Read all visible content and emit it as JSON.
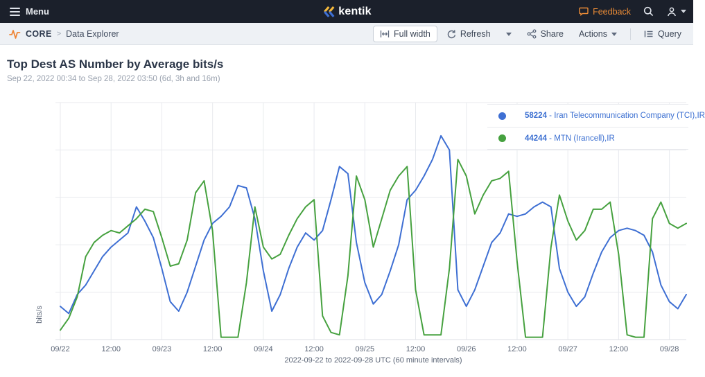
{
  "header": {
    "menu_label": "Menu",
    "brand": "kentik",
    "feedback_label": "Feedback"
  },
  "toolbar": {
    "breadcrumb": {
      "module": "CORE",
      "separator": ">",
      "page": "Data Explorer"
    },
    "buttons": {
      "full_width": "Full width",
      "refresh": "Refresh",
      "share": "Share",
      "actions": "Actions",
      "query": "Query"
    }
  },
  "page": {
    "title": "Top Dest AS Number by Average bits/s",
    "date_range": "Sep 22, 2022 00:34 to Sep 28, 2022 03:50 (6d, 3h and 16m)"
  },
  "chart_data": {
    "type": "line",
    "title": "Top Dest AS Number by Average bits/s",
    "ylabel": "bits/s",
    "xlabel": "2022-09-22 to 2022-09-28 UTC (60 minute intervals)",
    "x_unit": "hours since 2022-09-22 00:00 UTC",
    "x_step_hours": 2,
    "x_max_hours": 148,
    "x_tick_labels": [
      "09/22",
      "12:00",
      "09/23",
      "12:00",
      "09/24",
      "12:00",
      "09/25",
      "12:00",
      "09/26",
      "12:00",
      "09/27",
      "12:00",
      "09/28"
    ],
    "x_tick_hours": [
      0,
      12,
      24,
      36,
      48,
      60,
      72,
      84,
      96,
      108,
      120,
      132,
      144
    ],
    "ylim": [
      0,
      100
    ],
    "y_gridline_step": 20,
    "y_axis_numeric_labels_visible": false,
    "value_units": "relative bits/s (no numeric scale shown on axis)",
    "grid": true,
    "legend_position": "top-right",
    "series": [
      {
        "as_number": "58224",
        "separator": " - ",
        "description": "Iran Telecommunication Company (TCI),IR",
        "name": "58224 - Iran Telecommunication Company (TCI),IR",
        "color": "#3e6fd3",
        "values": [
          14,
          11,
          19,
          23,
          29,
          35,
          39,
          42,
          45,
          56,
          50,
          43,
          30,
          16,
          12,
          20,
          31,
          42,
          49,
          52,
          56,
          65,
          64,
          51,
          29,
          12,
          19,
          30,
          39,
          45,
          42,
          46,
          59,
          73,
          70,
          41,
          24,
          15,
          19,
          29,
          40,
          59,
          63,
          69,
          76,
          86,
          80,
          21,
          14,
          21,
          31,
          41,
          45,
          53,
          52,
          53,
          56,
          58,
          56,
          30,
          20,
          14,
          18,
          28,
          37,
          43,
          46,
          47,
          46,
          44,
          37,
          23,
          16,
          13,
          19
        ]
      },
      {
        "as_number": "44244",
        "separator": " - ",
        "description": "MTN (Irancell),IR",
        "name": "44244 - MTN (Irancell),IR",
        "color": "#46a13f",
        "values": [
          4,
          9,
          18,
          35,
          41,
          44,
          46,
          45,
          48,
          51,
          55,
          54,
          43,
          31,
          32,
          42,
          62,
          67,
          46,
          1,
          1,
          1,
          24,
          56,
          39,
          34,
          36,
          44,
          51,
          56,
          59,
          10,
          3,
          2,
          27,
          69,
          59,
          39,
          51,
          63,
          69,
          73,
          21,
          2,
          2,
          2,
          30,
          76,
          69,
          53,
          61,
          67,
          68,
          71,
          33,
          1,
          1,
          1,
          39,
          61,
          50,
          42,
          46,
          55,
          55,
          58,
          36,
          2,
          1,
          1,
          51,
          58,
          49,
          47,
          49
        ]
      }
    ]
  },
  "colors": {
    "topbar_bg": "#1b202b",
    "toolbar_bg": "#eef1f5",
    "accent_orange": "#ec8c36",
    "brand_yellow": "#f5b93c",
    "brand_blue": "#3e6fd3",
    "link_blue": "#3b6fd1",
    "grid_line": "#e8eaee",
    "axis_text": "#5b6576"
  }
}
